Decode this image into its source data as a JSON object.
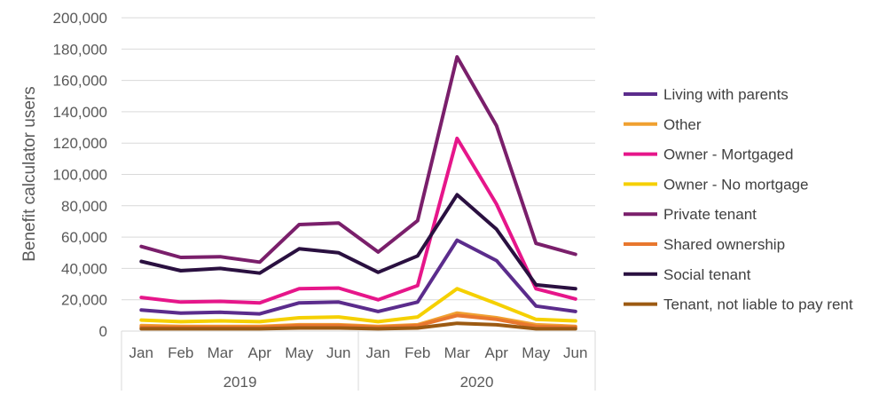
{
  "chart_data": {
    "type": "line",
    "title": "",
    "xlabel": "",
    "ylabel": "Benefit calculator users",
    "ylim": [
      0,
      200000
    ],
    "yticks": [
      0,
      20000,
      40000,
      60000,
      80000,
      100000,
      120000,
      140000,
      160000,
      180000,
      200000
    ],
    "ytick_labels": [
      "0",
      "20,000",
      "40,000",
      "60,000",
      "80,000",
      "100,000",
      "120,000",
      "140,000",
      "160,000",
      "180,000",
      "200,000"
    ],
    "categories": [
      "Jan",
      "Feb",
      "Mar",
      "Apr",
      "May",
      "Jun",
      "Jan",
      "Feb",
      "Mar",
      "Apr",
      "May",
      "Jun"
    ],
    "groups": [
      {
        "label": "2019",
        "count": 6
      },
      {
        "label": "2020",
        "count": 6
      }
    ],
    "grid": true,
    "legend_position": "right",
    "series": [
      {
        "name": "Living with parents",
        "color": "#5b2c8c",
        "values": [
          13500,
          11500,
          12000,
          11000,
          18000,
          18500,
          12500,
          18500,
          58000,
          45000,
          16000,
          12500
        ]
      },
      {
        "name": "Other",
        "color": "#f0a030",
        "values": [
          3500,
          3000,
          3000,
          3000,
          4000,
          4000,
          3000,
          4000,
          11500,
          8500,
          4000,
          3000
        ]
      },
      {
        "name": "Owner - Mortgaged",
        "color": "#e6168a",
        "values": [
          21500,
          18500,
          19000,
          18000,
          27000,
          27500,
          20000,
          29000,
          123000,
          81000,
          27000,
          20500
        ]
      },
      {
        "name": "Owner - No mortgage",
        "color": "#f5d000",
        "values": [
          7000,
          6000,
          6500,
          6000,
          8500,
          9000,
          6000,
          9000,
          27000,
          17500,
          7500,
          6500
        ]
      },
      {
        "name": "Private tenant",
        "color": "#7a1f6b",
        "values": [
          54000,
          47000,
          47500,
          44000,
          68000,
          69000,
          50500,
          70500,
          175000,
          131000,
          56000,
          49000
        ]
      },
      {
        "name": "Shared ownership",
        "color": "#e8772e",
        "values": [
          2500,
          2500,
          2500,
          2500,
          3500,
          3500,
          2500,
          3500,
          10000,
          7500,
          3000,
          2500
        ]
      },
      {
        "name": "Social tenant",
        "color": "#2a1040",
        "values": [
          44500,
          38500,
          40000,
          37000,
          52500,
          50000,
          37500,
          48000,
          87000,
          65000,
          29500,
          27000
        ]
      },
      {
        "name": "Tenant, not liable to pay rent",
        "color": "#9c5a12",
        "values": [
          1500,
          1500,
          1500,
          1500,
          2000,
          2000,
          1500,
          2000,
          5000,
          4000,
          1500,
          1500
        ]
      }
    ]
  }
}
